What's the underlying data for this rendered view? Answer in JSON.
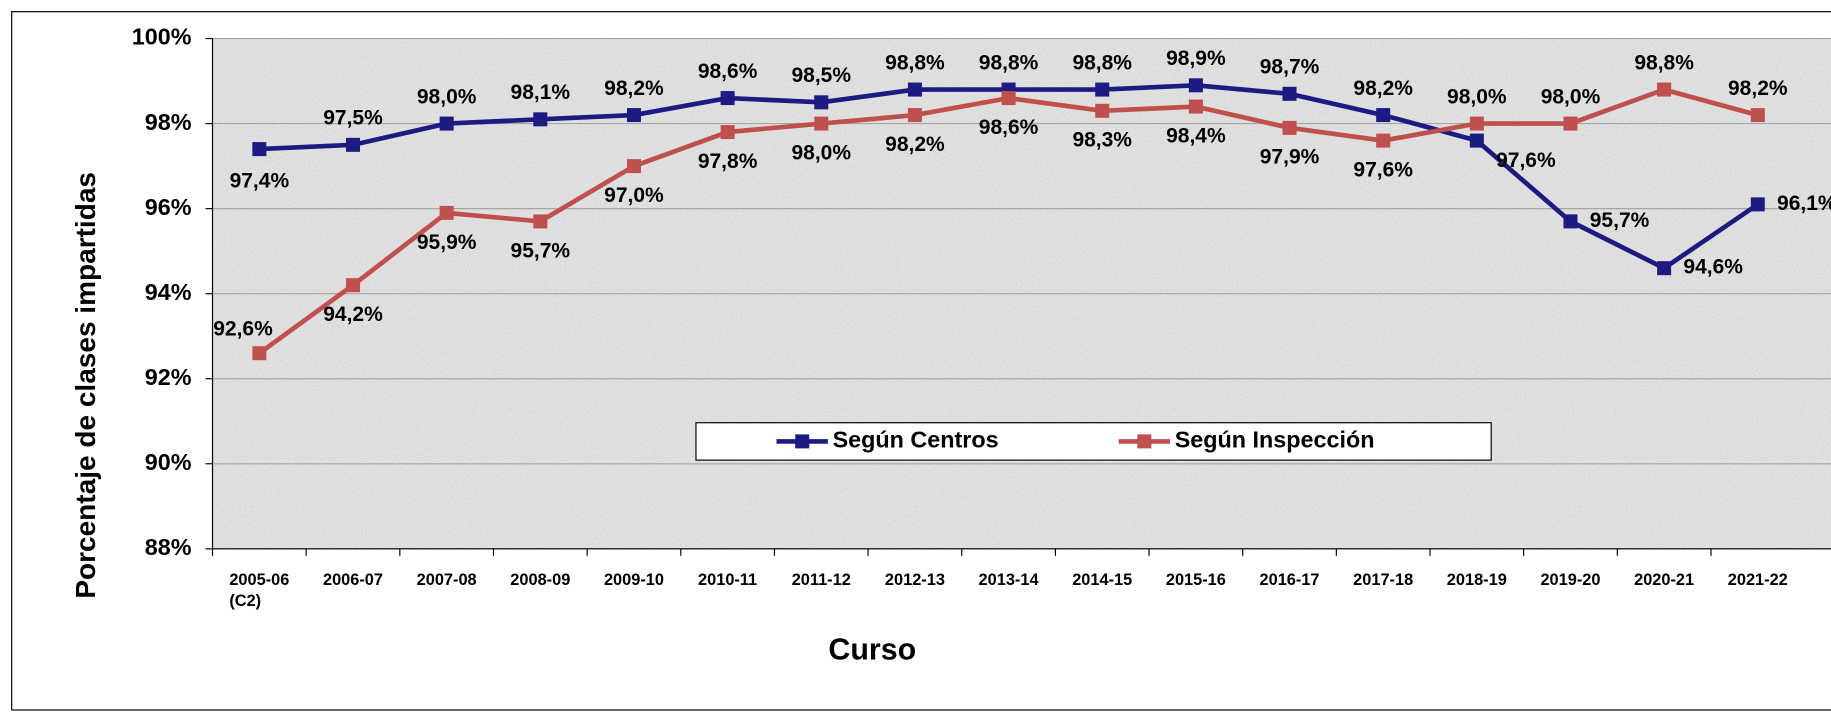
{
  "chart_data": {
    "type": "line",
    "xlabel": "Curso",
    "ylabel": "Porcentaje de clases impartidas",
    "categories": [
      "2005-06\n(C2)",
      "2006-07",
      "2007-08",
      "2008-09",
      "2009-10",
      "2010-11",
      "2011-12",
      "2012-13",
      "2013-14",
      "2014-15",
      "2015-16",
      "2016-17",
      "2017-18",
      "2018-19",
      "2019-20",
      "2020-21",
      "2021-22"
    ],
    "series": [
      {
        "name": "Según Centros",
        "color": "#1b1b82",
        "values": [
          97.4,
          97.5,
          98.0,
          98.1,
          98.2,
          98.6,
          98.5,
          98.8,
          98.8,
          98.8,
          98.9,
          98.7,
          98.2,
          97.6,
          95.7,
          94.6,
          96.1
        ],
        "value_labels": [
          "97,4%",
          "97,5%",
          "98,0%",
          "98,1%",
          "98,2%",
          "98,6%",
          "98,5%",
          "98,8%",
          "98,8%",
          "98,8%",
          "98,9%",
          "98,7%",
          "98,2%",
          "97,6%",
          "95,7%",
          "94,6%",
          "96,1%"
        ]
      },
      {
        "name": "Según Inspección",
        "color": "#c0504d",
        "values": [
          92.6,
          94.2,
          95.9,
          95.7,
          97.0,
          97.8,
          98.0,
          98.2,
          98.6,
          98.3,
          98.4,
          97.9,
          97.6,
          98.0,
          98.0,
          98.8,
          98.2
        ],
        "value_labels": [
          "92,6%",
          "94,2%",
          "95,9%",
          "95,7%",
          "97,0%",
          "97,8%",
          "98,0%",
          "98,2%",
          "98,6%",
          "98,3%",
          "98,4%",
          "97,9%",
          "97,6%",
          "98,0%",
          "98,0%",
          "98,8%",
          "98,2%"
        ]
      }
    ],
    "ylim": [
      88,
      100
    ],
    "yticks": [
      {
        "value": 88,
        "label": "88%"
      },
      {
        "value": 90,
        "label": "90%"
      },
      {
        "value": 92,
        "label": "92%"
      },
      {
        "value": 94,
        "label": "94%"
      },
      {
        "value": 96,
        "label": "96%"
      },
      {
        "value": 98,
        "label": "98%"
      },
      {
        "value": 100,
        "label": "100%"
      }
    ],
    "grid": true
  }
}
